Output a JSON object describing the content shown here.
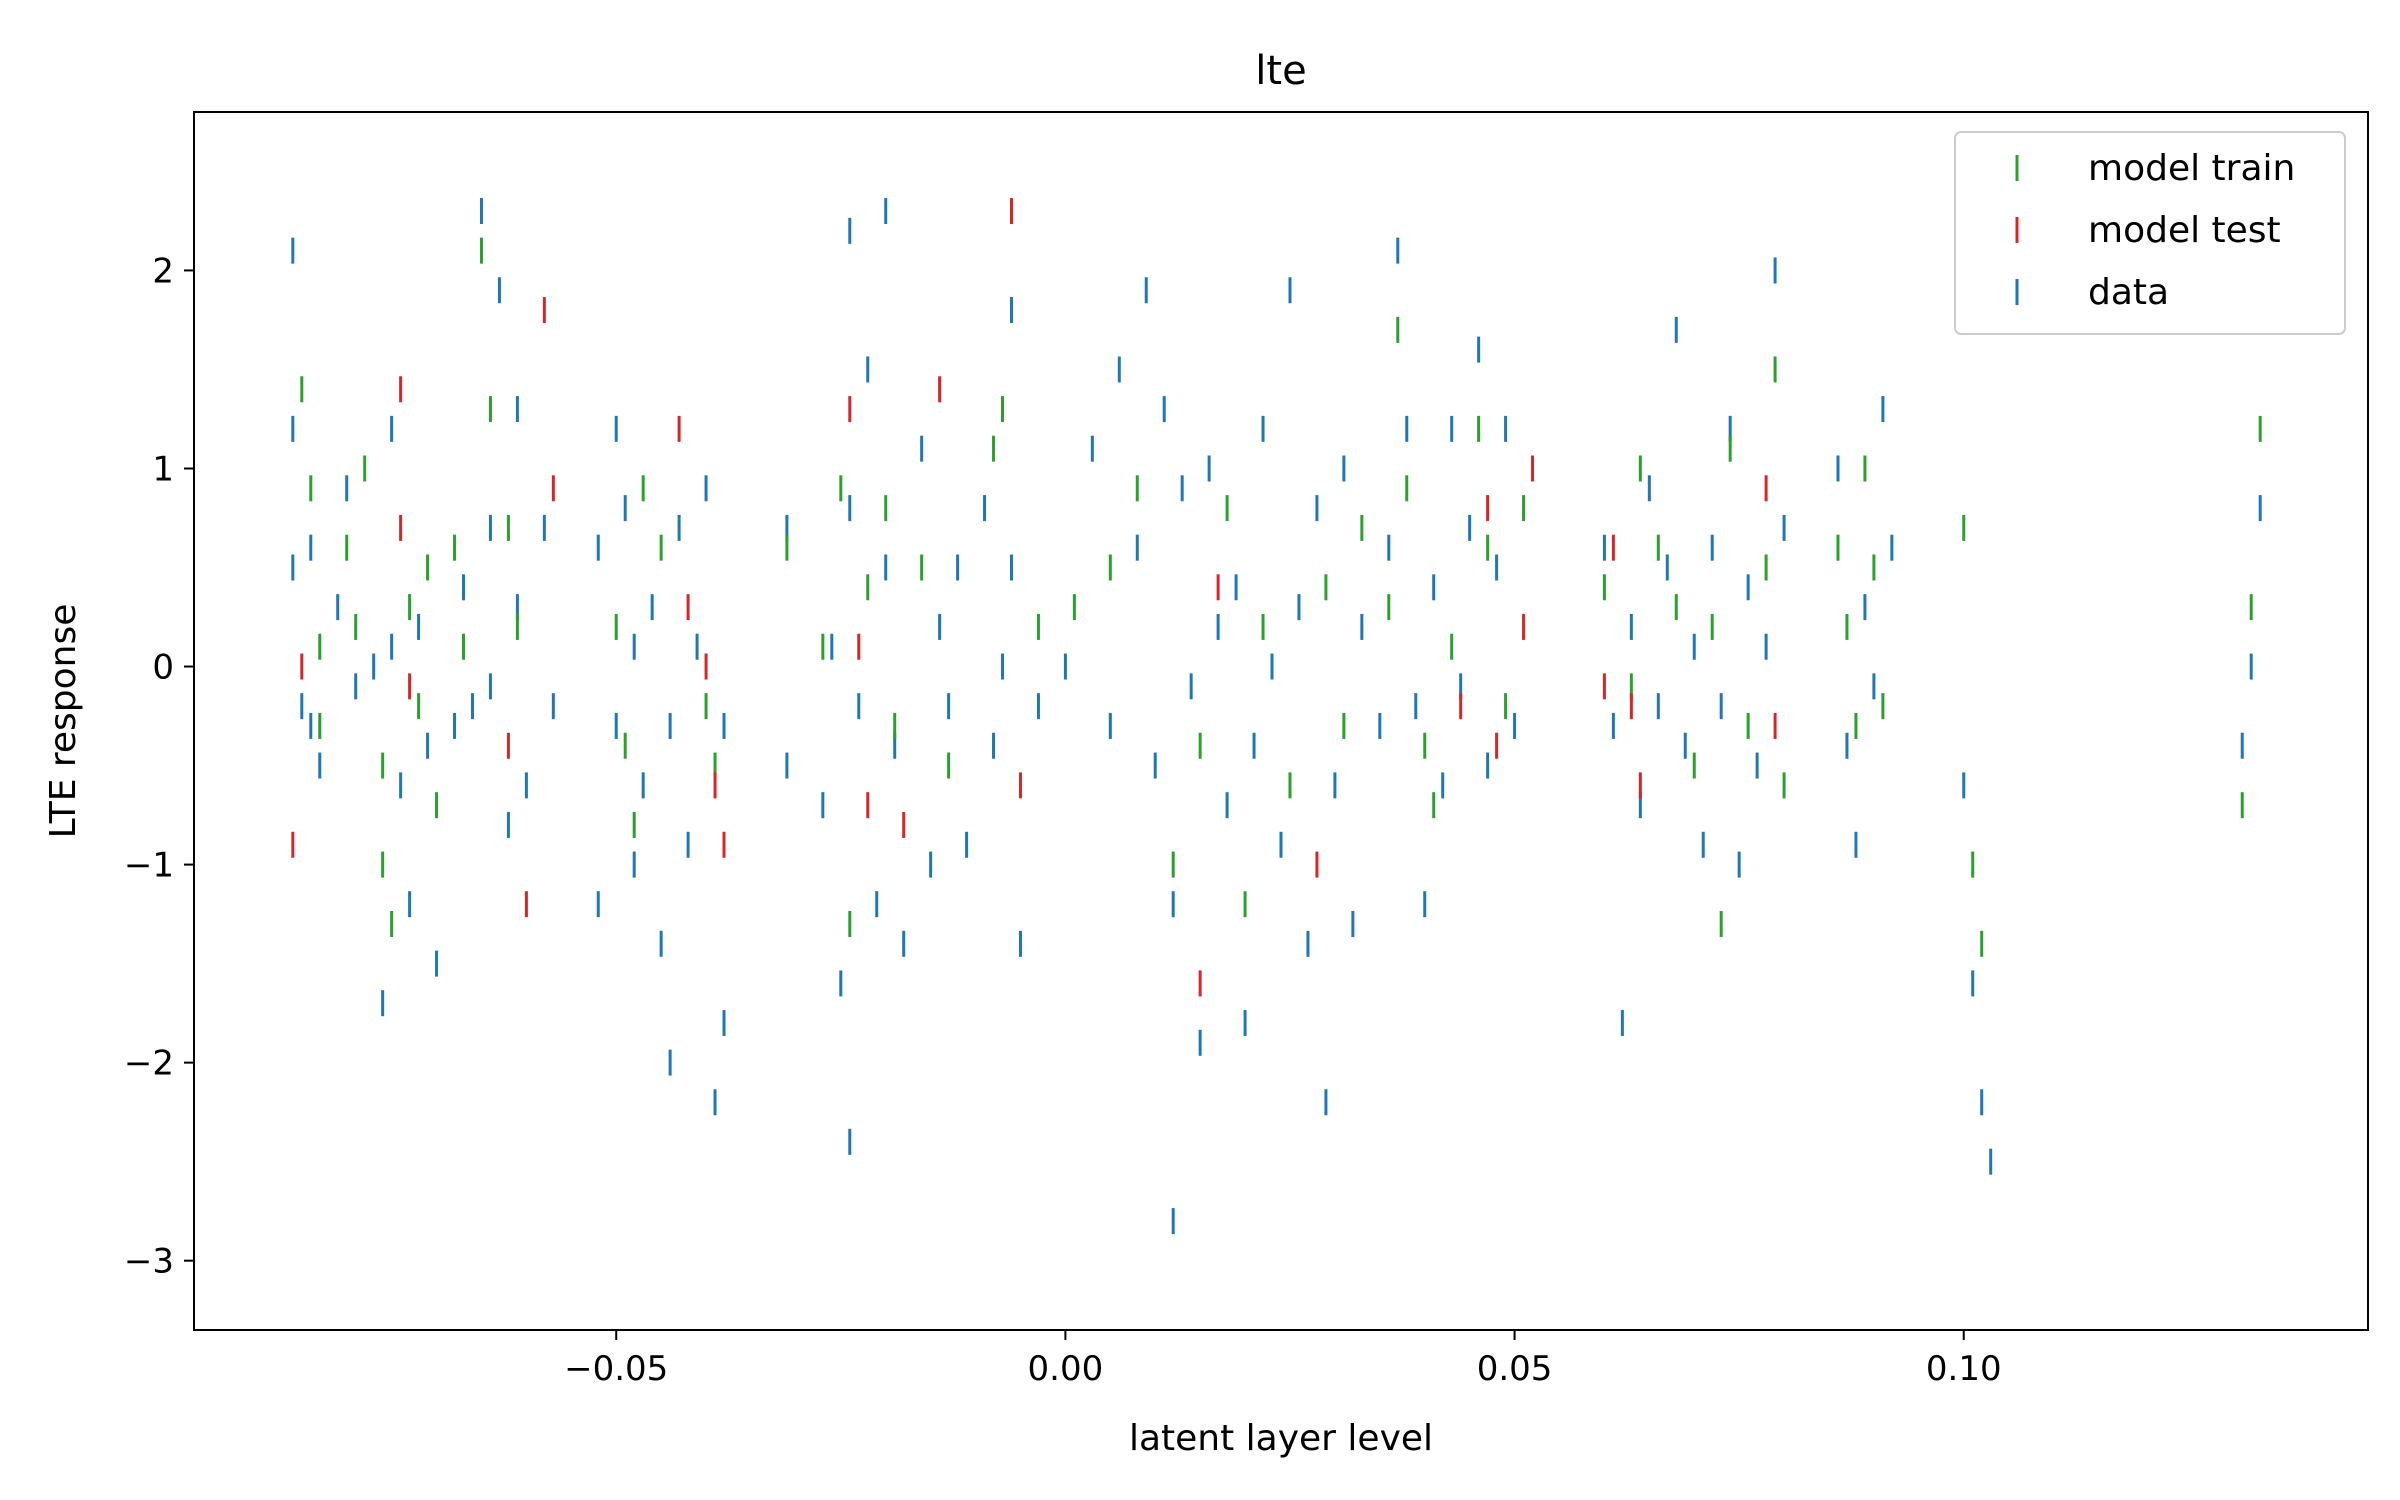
{
  "chart_data": {
    "type": "scatter",
    "title": "lte",
    "xlabel": "latent layer level",
    "ylabel": "LTE response",
    "xlim": [
      -0.097,
      0.145
    ],
    "ylim": [
      -3.35,
      2.8
    ],
    "xticks": [
      -0.05,
      0.0,
      0.05,
      0.1
    ],
    "xtick_labels": [
      "−0.05",
      "0.00",
      "0.05",
      "0.10"
    ],
    "yticks": [
      -3,
      -2,
      -1,
      0,
      1,
      2
    ],
    "ytick_labels": [
      "−3",
      "−2",
      "−1",
      "0",
      "1",
      "2"
    ],
    "marker": "vertical dash",
    "grid": false,
    "legend_position": "top-right",
    "series": [
      {
        "name": "model train",
        "color": "#2ca02c",
        "points": [
          [
            -0.085,
            1.4
          ],
          [
            -0.084,
            0.9
          ],
          [
            -0.083,
            0.1
          ],
          [
            -0.083,
            -0.3
          ],
          [
            -0.08,
            0.6
          ],
          [
            -0.079,
            0.2
          ],
          [
            -0.078,
            1.0
          ],
          [
            -0.076,
            -0.5
          ],
          [
            -0.076,
            -1.0
          ],
          [
            -0.075,
            -1.3
          ],
          [
            -0.073,
            0.3
          ],
          [
            -0.072,
            -0.2
          ],
          [
            -0.071,
            0.5
          ],
          [
            -0.07,
            -0.7
          ],
          [
            -0.068,
            0.6
          ],
          [
            -0.067,
            0.1
          ],
          [
            -0.065,
            2.1
          ],
          [
            -0.064,
            1.3
          ],
          [
            -0.062,
            0.7
          ],
          [
            -0.061,
            0.2
          ],
          [
            -0.05,
            0.2
          ],
          [
            -0.049,
            -0.4
          ],
          [
            -0.048,
            -0.8
          ],
          [
            -0.047,
            0.9
          ],
          [
            -0.045,
            0.6
          ],
          [
            -0.04,
            -0.2
          ],
          [
            -0.039,
            -0.5
          ],
          [
            -0.031,
            0.6
          ],
          [
            -0.027,
            0.1
          ],
          [
            -0.025,
            0.9
          ],
          [
            -0.024,
            -1.3
          ],
          [
            -0.022,
            0.4
          ],
          [
            -0.02,
            0.8
          ],
          [
            -0.019,
            -0.3
          ],
          [
            -0.016,
            0.5
          ],
          [
            -0.013,
            -0.5
          ],
          [
            -0.008,
            1.1
          ],
          [
            -0.007,
            1.3
          ],
          [
            -0.003,
            0.2
          ],
          [
            0.001,
            0.3
          ],
          [
            0.005,
            0.5
          ],
          [
            0.008,
            0.9
          ],
          [
            0.012,
            -1.0
          ],
          [
            0.015,
            -0.4
          ],
          [
            0.018,
            0.8
          ],
          [
            0.02,
            -1.2
          ],
          [
            0.022,
            0.2
          ],
          [
            0.025,
            -0.6
          ],
          [
            0.029,
            0.4
          ],
          [
            0.031,
            -0.3
          ],
          [
            0.033,
            0.7
          ],
          [
            0.036,
            0.3
          ],
          [
            0.037,
            1.7
          ],
          [
            0.038,
            0.9
          ],
          [
            0.04,
            -0.4
          ],
          [
            0.041,
            -0.7
          ],
          [
            0.043,
            0.1
          ],
          [
            0.046,
            1.2
          ],
          [
            0.047,
            0.6
          ],
          [
            0.049,
            -0.2
          ],
          [
            0.051,
            0.8
          ],
          [
            0.06,
            0.4
          ],
          [
            0.063,
            -0.1
          ],
          [
            0.064,
            1.0
          ],
          [
            0.066,
            0.6
          ],
          [
            0.068,
            0.3
          ],
          [
            0.07,
            -0.5
          ],
          [
            0.072,
            0.2
          ],
          [
            0.073,
            -1.3
          ],
          [
            0.074,
            1.1
          ],
          [
            0.076,
            -0.3
          ],
          [
            0.078,
            0.5
          ],
          [
            0.079,
            1.5
          ],
          [
            0.08,
            -0.6
          ],
          [
            0.086,
            0.6
          ],
          [
            0.087,
            0.2
          ],
          [
            0.088,
            -0.3
          ],
          [
            0.089,
            1.0
          ],
          [
            0.09,
            0.5
          ],
          [
            0.091,
            -0.2
          ],
          [
            0.1,
            0.7
          ],
          [
            0.101,
            -1.0
          ],
          [
            0.102,
            -1.4
          ],
          [
            0.131,
            -0.7
          ],
          [
            0.132,
            0.3
          ],
          [
            0.133,
            1.2
          ]
        ]
      },
      {
        "name": "model test",
        "color": "#d62728",
        "points": [
          [
            -0.086,
            -0.9
          ],
          [
            -0.085,
            0.0
          ],
          [
            -0.074,
            1.4
          ],
          [
            -0.074,
            0.7
          ],
          [
            -0.073,
            -0.1
          ],
          [
            -0.062,
            -0.4
          ],
          [
            -0.06,
            -1.2
          ],
          [
            -0.058,
            1.8
          ],
          [
            -0.057,
            0.9
          ],
          [
            -0.043,
            1.2
          ],
          [
            -0.042,
            0.3
          ],
          [
            -0.04,
            0.0
          ],
          [
            -0.039,
            -0.6
          ],
          [
            -0.038,
            -0.9
          ],
          [
            -0.024,
            1.3
          ],
          [
            -0.023,
            0.1
          ],
          [
            -0.022,
            -0.7
          ],
          [
            -0.018,
            -0.8
          ],
          [
            -0.014,
            1.4
          ],
          [
            -0.006,
            2.3
          ],
          [
            -0.005,
            -0.6
          ],
          [
            0.015,
            -1.6
          ],
          [
            0.017,
            0.4
          ],
          [
            0.028,
            -1.0
          ],
          [
            0.044,
            -0.2
          ],
          [
            0.047,
            0.8
          ],
          [
            0.048,
            -0.4
          ],
          [
            0.051,
            0.2
          ],
          [
            0.052,
            1.0
          ],
          [
            0.06,
            -0.1
          ],
          [
            0.061,
            0.6
          ],
          [
            0.063,
            -0.2
          ],
          [
            0.064,
            -0.6
          ],
          [
            0.078,
            0.9
          ],
          [
            0.079,
            -0.3
          ]
        ]
      },
      {
        "name": "data",
        "color": "#1f77b4",
        "points": [
          [
            -0.086,
            2.1
          ],
          [
            -0.086,
            1.2
          ],
          [
            -0.086,
            0.5
          ],
          [
            -0.085,
            -0.2
          ],
          [
            -0.084,
            0.6
          ],
          [
            -0.084,
            -0.3
          ],
          [
            -0.083,
            -0.5
          ],
          [
            -0.081,
            0.3
          ],
          [
            -0.08,
            0.9
          ],
          [
            -0.079,
            -0.1
          ],
          [
            -0.077,
            0.0
          ],
          [
            -0.076,
            -1.7
          ],
          [
            -0.075,
            1.2
          ],
          [
            -0.075,
            0.1
          ],
          [
            -0.074,
            -0.6
          ],
          [
            -0.073,
            -1.2
          ],
          [
            -0.072,
            0.2
          ],
          [
            -0.071,
            -0.4
          ],
          [
            -0.07,
            -1.5
          ],
          [
            -0.068,
            -0.3
          ],
          [
            -0.067,
            0.4
          ],
          [
            -0.066,
            -0.2
          ],
          [
            -0.065,
            2.3
          ],
          [
            -0.064,
            0.7
          ],
          [
            -0.064,
            -0.1
          ],
          [
            -0.063,
            1.9
          ],
          [
            -0.062,
            -0.8
          ],
          [
            -0.061,
            1.3
          ],
          [
            -0.061,
            0.3
          ],
          [
            -0.06,
            -0.6
          ],
          [
            -0.058,
            0.7
          ],
          [
            -0.057,
            -0.2
          ],
          [
            -0.052,
            0.6
          ],
          [
            -0.052,
            -1.2
          ],
          [
            -0.05,
            1.2
          ],
          [
            -0.05,
            -0.3
          ],
          [
            -0.049,
            0.8
          ],
          [
            -0.048,
            0.1
          ],
          [
            -0.048,
            -1.0
          ],
          [
            -0.047,
            -0.6
          ],
          [
            -0.046,
            0.3
          ],
          [
            -0.045,
            -1.4
          ],
          [
            -0.044,
            -0.3
          ],
          [
            -0.044,
            -2.0
          ],
          [
            -0.043,
            0.7
          ],
          [
            -0.042,
            -0.9
          ],
          [
            -0.041,
            0.1
          ],
          [
            -0.04,
            0.9
          ],
          [
            -0.039,
            -2.2
          ],
          [
            -0.038,
            -0.3
          ],
          [
            -0.038,
            -1.8
          ],
          [
            -0.031,
            0.7
          ],
          [
            -0.031,
            -0.5
          ],
          [
            -0.027,
            -0.7
          ],
          [
            -0.026,
            0.1
          ],
          [
            -0.025,
            -1.6
          ],
          [
            -0.024,
            2.2
          ],
          [
            -0.024,
            0.8
          ],
          [
            -0.024,
            -2.4
          ],
          [
            -0.023,
            -0.2
          ],
          [
            -0.022,
            1.5
          ],
          [
            -0.021,
            -1.2
          ],
          [
            -0.02,
            2.3
          ],
          [
            -0.02,
            0.5
          ],
          [
            -0.019,
            -0.4
          ],
          [
            -0.018,
            -1.4
          ],
          [
            -0.016,
            1.1
          ],
          [
            -0.015,
            -1.0
          ],
          [
            -0.014,
            0.2
          ],
          [
            -0.013,
            -0.2
          ],
          [
            -0.012,
            0.5
          ],
          [
            -0.011,
            -0.9
          ],
          [
            -0.009,
            0.8
          ],
          [
            -0.008,
            -0.4
          ],
          [
            -0.007,
            0.0
          ],
          [
            -0.006,
            1.8
          ],
          [
            -0.006,
            0.5
          ],
          [
            -0.005,
            -1.4
          ],
          [
            -0.003,
            -0.2
          ],
          [
            0.0,
            0.0
          ],
          [
            0.003,
            1.1
          ],
          [
            0.005,
            -0.3
          ],
          [
            0.006,
            1.5
          ],
          [
            0.008,
            0.6
          ],
          [
            0.009,
            1.9
          ],
          [
            0.01,
            -0.5
          ],
          [
            0.011,
            1.3
          ],
          [
            0.012,
            -1.2
          ],
          [
            0.012,
            -2.8
          ],
          [
            0.013,
            0.9
          ],
          [
            0.014,
            -0.1
          ],
          [
            0.015,
            -1.9
          ],
          [
            0.016,
            1.0
          ],
          [
            0.017,
            0.2
          ],
          [
            0.018,
            -0.7
          ],
          [
            0.019,
            0.4
          ],
          [
            0.02,
            -1.8
          ],
          [
            0.021,
            -0.4
          ],
          [
            0.022,
            1.2
          ],
          [
            0.023,
            0.0
          ],
          [
            0.024,
            -0.9
          ],
          [
            0.025,
            1.9
          ],
          [
            0.026,
            0.3
          ],
          [
            0.027,
            -1.4
          ],
          [
            0.028,
            0.8
          ],
          [
            0.029,
            -2.2
          ],
          [
            0.03,
            -0.6
          ],
          [
            0.031,
            1.0
          ],
          [
            0.032,
            -1.3
          ],
          [
            0.033,
            0.2
          ],
          [
            0.035,
            -0.3
          ],
          [
            0.036,
            0.6
          ],
          [
            0.037,
            2.1
          ],
          [
            0.038,
            1.2
          ],
          [
            0.039,
            -0.2
          ],
          [
            0.04,
            -1.2
          ],
          [
            0.041,
            0.4
          ],
          [
            0.042,
            -0.6
          ],
          [
            0.043,
            1.2
          ],
          [
            0.044,
            -0.1
          ],
          [
            0.045,
            0.7
          ],
          [
            0.046,
            1.6
          ],
          [
            0.047,
            -0.5
          ],
          [
            0.048,
            0.5
          ],
          [
            0.049,
            1.2
          ],
          [
            0.05,
            -0.3
          ],
          [
            0.06,
            0.6
          ],
          [
            0.061,
            -0.3
          ],
          [
            0.062,
            -1.8
          ],
          [
            0.063,
            0.2
          ],
          [
            0.064,
            -0.7
          ],
          [
            0.065,
            0.9
          ],
          [
            0.066,
            -0.2
          ],
          [
            0.067,
            0.5
          ],
          [
            0.068,
            1.7
          ],
          [
            0.069,
            -0.4
          ],
          [
            0.07,
            0.1
          ],
          [
            0.071,
            -0.9
          ],
          [
            0.072,
            0.6
          ],
          [
            0.073,
            -0.2
          ],
          [
            0.074,
            1.2
          ],
          [
            0.075,
            -1.0
          ],
          [
            0.076,
            0.4
          ],
          [
            0.077,
            -0.5
          ],
          [
            0.078,
            0.1
          ],
          [
            0.079,
            2.0
          ],
          [
            0.08,
            0.7
          ],
          [
            0.086,
            1.0
          ],
          [
            0.087,
            -0.4
          ],
          [
            0.088,
            -0.9
          ],
          [
            0.089,
            0.3
          ],
          [
            0.09,
            -0.1
          ],
          [
            0.091,
            1.3
          ],
          [
            0.092,
            0.6
          ],
          [
            0.1,
            -0.6
          ],
          [
            0.101,
            -1.6
          ],
          [
            0.102,
            -2.2
          ],
          [
            0.103,
            -2.5
          ],
          [
            0.131,
            -0.4
          ],
          [
            0.132,
            0.0
          ],
          [
            0.133,
            0.8
          ]
        ]
      }
    ]
  }
}
